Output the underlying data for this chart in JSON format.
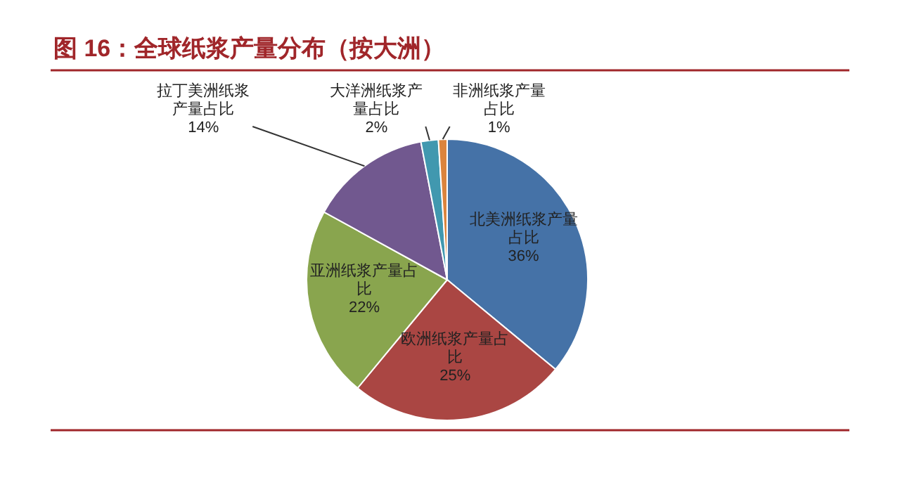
{
  "chart_data": {
    "type": "pie",
    "title": "图 16：全球纸浆产量分布（按大洲）",
    "categories": [
      "北美洲纸浆产量占比",
      "欧洲纸浆产量占比",
      "亚洲纸浆产量占比",
      "拉丁美洲纸浆产量占比",
      "大洋洲纸浆产量占比",
      "非洲纸浆产量占比"
    ],
    "values": [
      36,
      25,
      22,
      14,
      2,
      1
    ],
    "colors": [
      "#4572a7",
      "#aa4643",
      "#89a54e",
      "#71588f",
      "#4198af",
      "#db843d"
    ],
    "value_labels": [
      "36%",
      "25%",
      "22%",
      "14%",
      "2%",
      "1%"
    ]
  }
}
